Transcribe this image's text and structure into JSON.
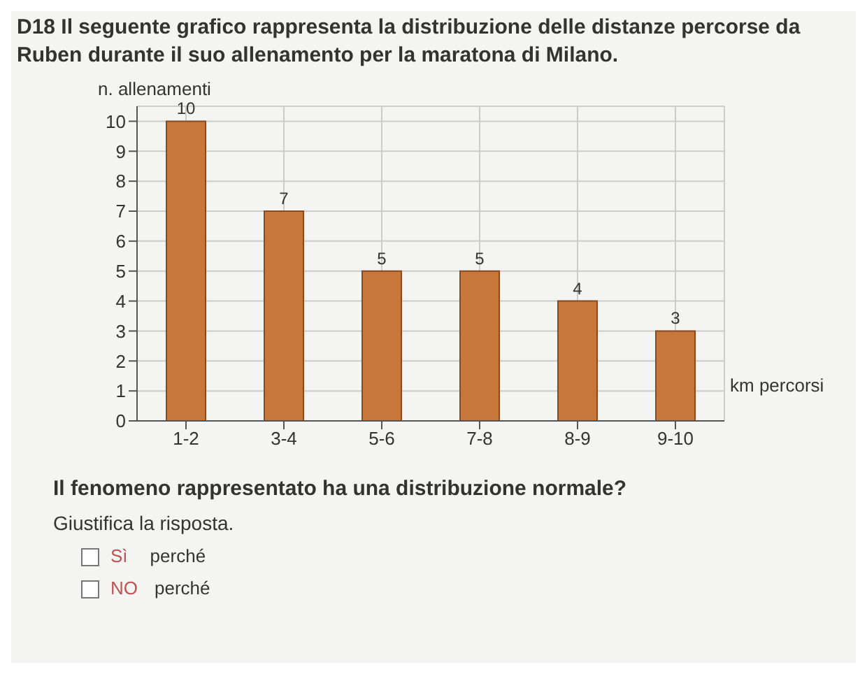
{
  "chart_data": {
    "type": "bar",
    "title": "D18 Il seguente grafico rappresenta la distribuzione delle distanze percorse da Ruben durante il suo allenamento per la maratona di Milano.",
    "ylabel": "n. allenamenti",
    "xlabel": "km percorsi",
    "categories": [
      "1-2",
      "3-4",
      "5-6",
      "7-8",
      "8-9",
      "9-10"
    ],
    "values": [
      10,
      7,
      5,
      5,
      4,
      3
    ],
    "color": "#c8773a",
    "ylim": [
      0,
      10.5
    ],
    "yticks": [
      0,
      1,
      2,
      3,
      4,
      5,
      6,
      7,
      8,
      9,
      10
    ],
    "grid": true,
    "data_labels": true,
    "annotations": [
      "Il fenomeno rappresentato ha una distribuzione normale?",
      "Giustifica la risposta.",
      "Sì",
      "perché",
      "NO",
      "perché"
    ]
  }
}
